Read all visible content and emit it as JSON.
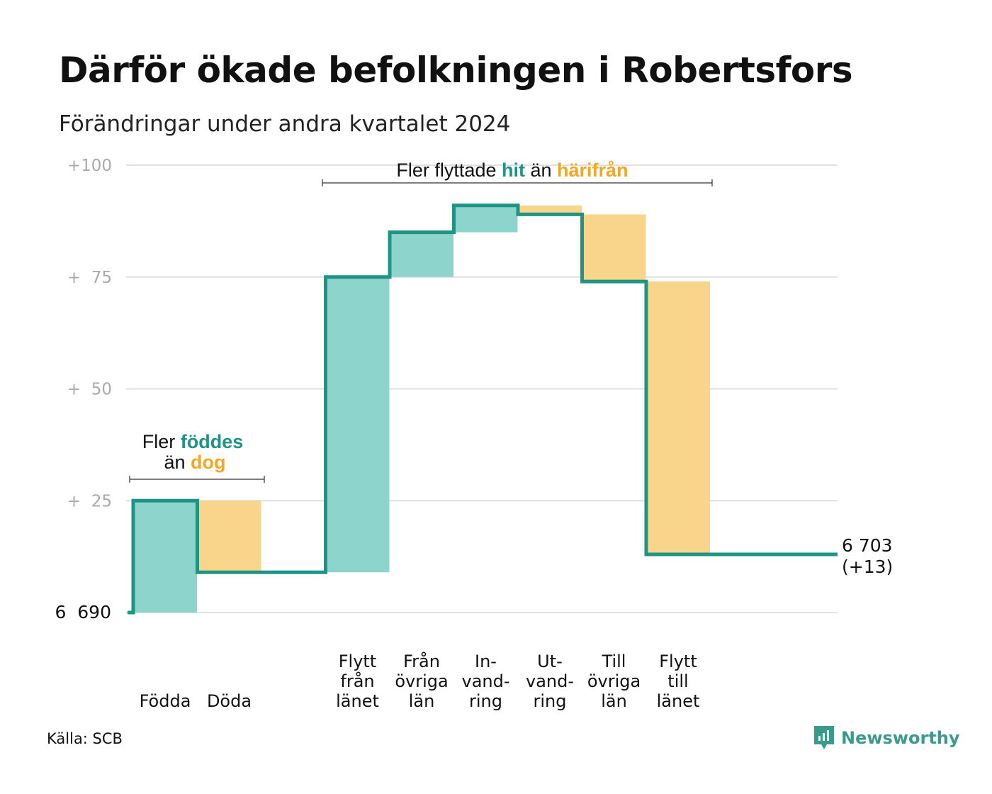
{
  "title": "Därför ökade befolkningen i Robertsfors",
  "subtitle": "Förändringar under andra kvartalet 2024",
  "source": "Källa: SCB",
  "logo_text": "Newsworthy",
  "colors": {
    "increase_fill": "#8dd5cc",
    "decrease_fill": "#f9d58c",
    "step_line": "#1e9584",
    "hit_text": "#1e9584",
    "away_text": "#f5a623",
    "grid": "#e0e0e0",
    "tick_text": "#aaaaaa"
  },
  "annotations": {
    "birth": {
      "line1_prefix": "Fler ",
      "line1_highlight": "föddes",
      "line2_prefix": "än ",
      "line2_highlight": "dog"
    },
    "move": {
      "prefix": "Fler flyttade ",
      "highlight1": "hit",
      "middle": " än ",
      "highlight2": "härifrån"
    }
  },
  "end_label": {
    "total": "6 703",
    "change": "(+13)"
  },
  "chart_data": {
    "type": "waterfall",
    "base_value": 6690,
    "base_label": "6  690",
    "final_value": 6703,
    "ylim": [
      0,
      100
    ],
    "y_ticks": [
      {
        "value": 100,
        "label": "+100"
      },
      {
        "value": 75,
        "label": "+  75"
      },
      {
        "value": 50,
        "label": "+  50"
      },
      {
        "value": 25,
        "label": "+  25"
      }
    ],
    "grid": true,
    "steps": [
      {
        "label": [
          "Födda"
        ],
        "change": 25,
        "direction": "increase",
        "start": 0,
        "end": 25
      },
      {
        "label": [
          "Döda"
        ],
        "change": -16,
        "direction": "decrease",
        "start": 25,
        "end": 9
      },
      {
        "label": [
          "Flytt",
          "från",
          "länet"
        ],
        "change": 66,
        "direction": "increase",
        "start": 9,
        "end": 75
      },
      {
        "label": [
          "Från",
          "övriga",
          "län"
        ],
        "change": 10,
        "direction": "increase",
        "start": 75,
        "end": 85
      },
      {
        "label": [
          "In-",
          "vand-",
          "ring"
        ],
        "change": 6,
        "direction": "increase",
        "start": 85,
        "end": 91
      },
      {
        "label": [
          "Ut-",
          "vand-",
          "ring"
        ],
        "change": -2,
        "direction": "decrease",
        "start": 91,
        "end": 89
      },
      {
        "label": [
          "Till",
          "övriga",
          "län"
        ],
        "change": -15,
        "direction": "decrease",
        "start": 89,
        "end": 74
      },
      {
        "label": [
          "Flytt",
          "till",
          "länet"
        ],
        "change": -61,
        "direction": "decrease",
        "start": 74,
        "end": 13
      }
    ]
  }
}
